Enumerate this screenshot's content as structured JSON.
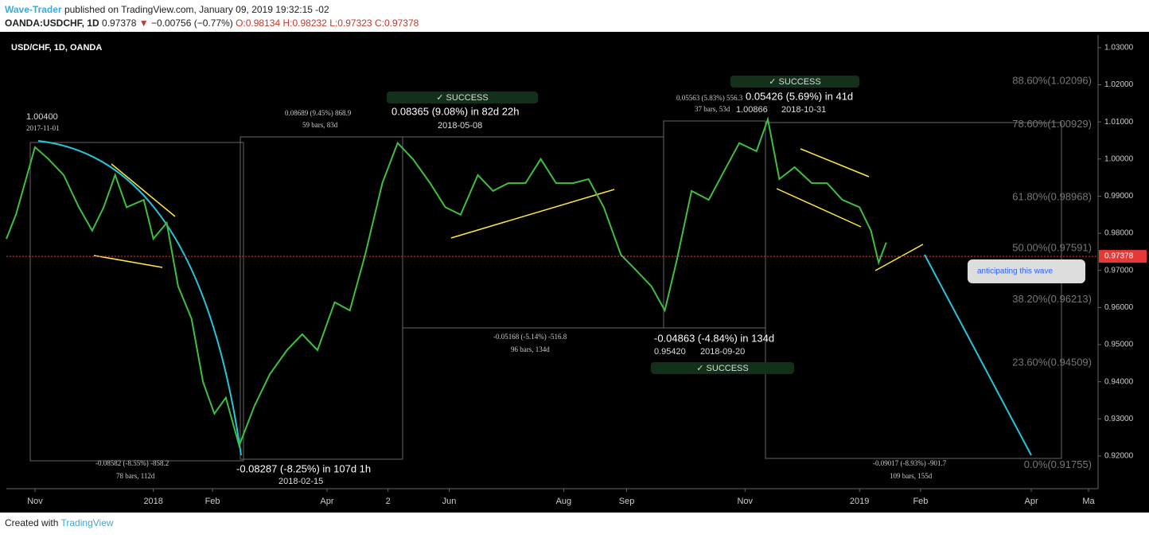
{
  "header": {
    "author": "Wave-Trader",
    "published": "published on TradingView.com, January 09, 2019 19:32:15 -02",
    "symbol": "OANDA:USDCHF, 1D",
    "last": "0.97378",
    "change": "−0.00756 (−0.77%)",
    "open": "O:0.98134",
    "high": "H:0.98232",
    "low": "L:0.97323",
    "close": "C:0.97378"
  },
  "footer": {
    "created": "Created with",
    "brand": "TradingView"
  },
  "chart_data": {
    "type": "line",
    "title": "USD/CHF, 1D, OANDA",
    "color": "#3fbf3f",
    "x": [
      0,
      5,
      15,
      22,
      30,
      38,
      45,
      51,
      57,
      63,
      72,
      77,
      84,
      90,
      97,
      103,
      109,
      115,
      122,
      130,
      138,
      147,
      155,
      163,
      172,
      180,
      188,
      197,
      205,
      213,
      222,
      230,
      238,
      247,
      255,
      263,
      272,
      280,
      288,
      297,
      305,
      313,
      322,
      330,
      338,
      345,
      351,
      359,
      368,
      376,
      384,
      393,
      399,
      405,
      413,
      422,
      430,
      438,
      447,
      453,
      457,
      461
    ],
    "values": [
      0.9785,
      0.985,
      1.0032,
      1.0,
      0.9957,
      0.987,
      0.9807,
      0.987,
      0.9957,
      0.987,
      0.989,
      0.9785,
      0.9828,
      0.9657,
      0.957,
      0.94,
      0.9314,
      0.9357,
      0.9228,
      0.9335,
      0.942,
      0.9485,
      0.9528,
      0.9485,
      0.9614,
      0.9592,
      0.9742,
      0.9935,
      1.0043,
      1.0,
      0.9935,
      0.987,
      0.985,
      0.9957,
      0.9914,
      0.9935,
      0.9935,
      1.0,
      0.9935,
      0.9935,
      0.9946,
      0.987,
      0.9742,
      0.97,
      0.9657,
      0.9592,
      0.9721,
      0.9914,
      0.989,
      0.9967,
      1.0043,
      1.0021,
      1.0107,
      0.9946,
      0.9978,
      0.9935,
      0.9935,
      0.989,
      0.987,
      0.9807,
      0.9721,
      0.9775
    ],
    "xlim": [
      0,
      572
    ],
    "xticks": [
      {
        "value": 15,
        "label": "Nov"
      },
      {
        "value": 77,
        "label": "2018"
      },
      {
        "value": 108,
        "label": "Feb"
      },
      {
        "value": 168,
        "label": "Apr"
      },
      {
        "value": 200,
        "label": "2"
      },
      {
        "value": 232,
        "label": "Jun"
      },
      {
        "value": 292,
        "label": "Aug"
      },
      {
        "value": 325,
        "label": "Sep"
      },
      {
        "value": 387,
        "label": "Nov"
      },
      {
        "value": 447,
        "label": "2019"
      },
      {
        "value": 479,
        "label": "Feb"
      },
      {
        "value": 537,
        "label": "Apr"
      },
      {
        "value": 567,
        "label": "Ma"
      }
    ],
    "ylim": [
      0.9112,
      1.0334
    ],
    "yticks": [
      {
        "value": 0.92,
        "label": "0.92000"
      },
      {
        "value": 0.93,
        "label": "0.93000"
      },
      {
        "value": 0.94,
        "label": "0.94000"
      },
      {
        "value": 0.95,
        "label": "0.95000"
      },
      {
        "value": 0.96,
        "label": "0.96000"
      },
      {
        "value": 0.97,
        "label": "0.97000"
      },
      {
        "value": 0.98,
        "label": "0.98000"
      },
      {
        "value": 0.99,
        "label": "0.99000"
      },
      {
        "value": 1.0,
        "label": "1.00000"
      },
      {
        "value": 1.01,
        "label": "1.01000"
      },
      {
        "value": 1.02,
        "label": "1.02000"
      },
      {
        "value": 1.03,
        "label": "1.03000"
      }
    ],
    "current_price": {
      "value": 0.97378,
      "label": "0.97378"
    },
    "fib_levels": [
      {
        "value": 1.02096,
        "label": "88.60%(1.02096)"
      },
      {
        "value": 1.00929,
        "label": "78.60%(1.00929)"
      },
      {
        "value": 0.98968,
        "label": "61.80%(0.98968)"
      },
      {
        "value": 0.97591,
        "label": "50.00%(0.97591)"
      },
      {
        "value": 0.96213,
        "label": "38.20%(0.96213)"
      },
      {
        "value": 0.94509,
        "label": "23.60%(0.94509)"
      },
      {
        "value": 0.91755,
        "label": "0.0%(0.91755)"
      }
    ],
    "annotations": [
      "1.00400",
      "2017-11-01",
      "0.08689 (9.45%) 868.9",
      "59 bars, 83d",
      "0.08365 (9.08%) in 82d 22h",
      "2018-05-08",
      "0.05563 (5.83%) 556.3",
      "37 bars, 53d",
      "0.05426 (5.69%) in 41d",
      "1.00866",
      "2018-10-31",
      "-0.05168 (-5.14%) -516.8",
      "96 bars, 134d",
      "-0.04863 (-4.84%) in 134d",
      "0.95420",
      "2018-09-20",
      "-0.08582 (-8.55%) -858.2",
      "78 bars, 112d",
      "-0.08287 (-8.25%) in 107d 1h",
      "2018-02-15",
      "-0.09017 (-8.93%) -901.7",
      "109 bars, 155d"
    ],
    "success": [
      "✓ SUCCESS",
      "✓ SUCCESS",
      "✓ SUCCESS"
    ],
    "callout": "anticipating this wave"
  }
}
